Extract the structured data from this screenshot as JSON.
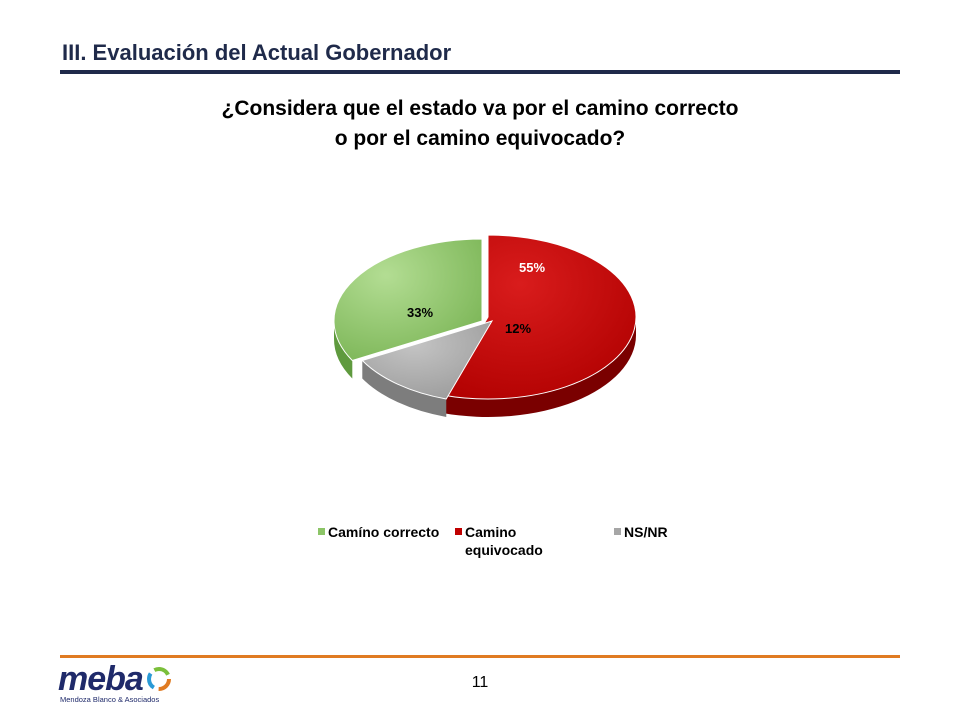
{
  "header": {
    "section_title": "III. Evaluación del Actual Gobernador"
  },
  "question": {
    "line1": "¿Considera  que el estado va por el camino correcto",
    "line2": "o por el camino equivocado?"
  },
  "chart_data": {
    "type": "pie",
    "title": "",
    "style": "3d-exploded",
    "legend_position": "bottom",
    "series": [
      {
        "name": "Camíno correcto",
        "value": 33,
        "label": "33%",
        "color": "#8cc567"
      },
      {
        "name": "Camino equivocado",
        "value": 55,
        "label": "55%",
        "color": "#c00000"
      },
      {
        "name": "NS/NR",
        "value": 12,
        "label": "12%",
        "color": "#a6a6a6"
      }
    ]
  },
  "legend": {
    "items": [
      {
        "label": "Camíno correcto",
        "color": "#8cc567"
      },
      {
        "label": "Camino equivocado",
        "color": "#c00000"
      },
      {
        "label": "NS/NR",
        "color": "#a6a6a6"
      }
    ]
  },
  "footer": {
    "logo_word": "meba",
    "logo_tagline": "Mendoza Blanco & Asociados",
    "page_number": "11",
    "accent_color": "#e07b22"
  }
}
